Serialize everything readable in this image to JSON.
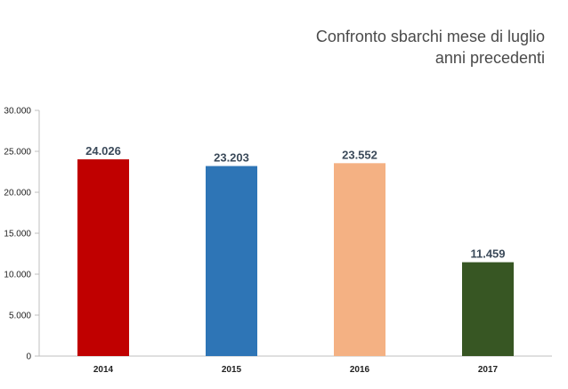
{
  "title_line1": "Confronto sbarchi mese di luglio",
  "title_line2": "anni precedenti",
  "chart_data": {
    "type": "bar",
    "categories": [
      "2014",
      "2015",
      "2016",
      "2017"
    ],
    "values": [
      24026,
      23203,
      23552,
      11459
    ],
    "data_labels": [
      "24.026",
      "23.203",
      "23.552",
      "11.459"
    ],
    "colors": [
      "#c00000",
      "#2e75b6",
      "#f4b183",
      "#375623"
    ],
    "ylim": [
      0,
      30000
    ],
    "yticks": [
      0,
      5000,
      10000,
      15000,
      20000,
      25000,
      30000
    ],
    "ytick_labels": [
      "0",
      "5.000",
      "10.000",
      "15.000",
      "20.000",
      "25.000",
      "30.000"
    ],
    "grid": false,
    "legend": "none"
  }
}
